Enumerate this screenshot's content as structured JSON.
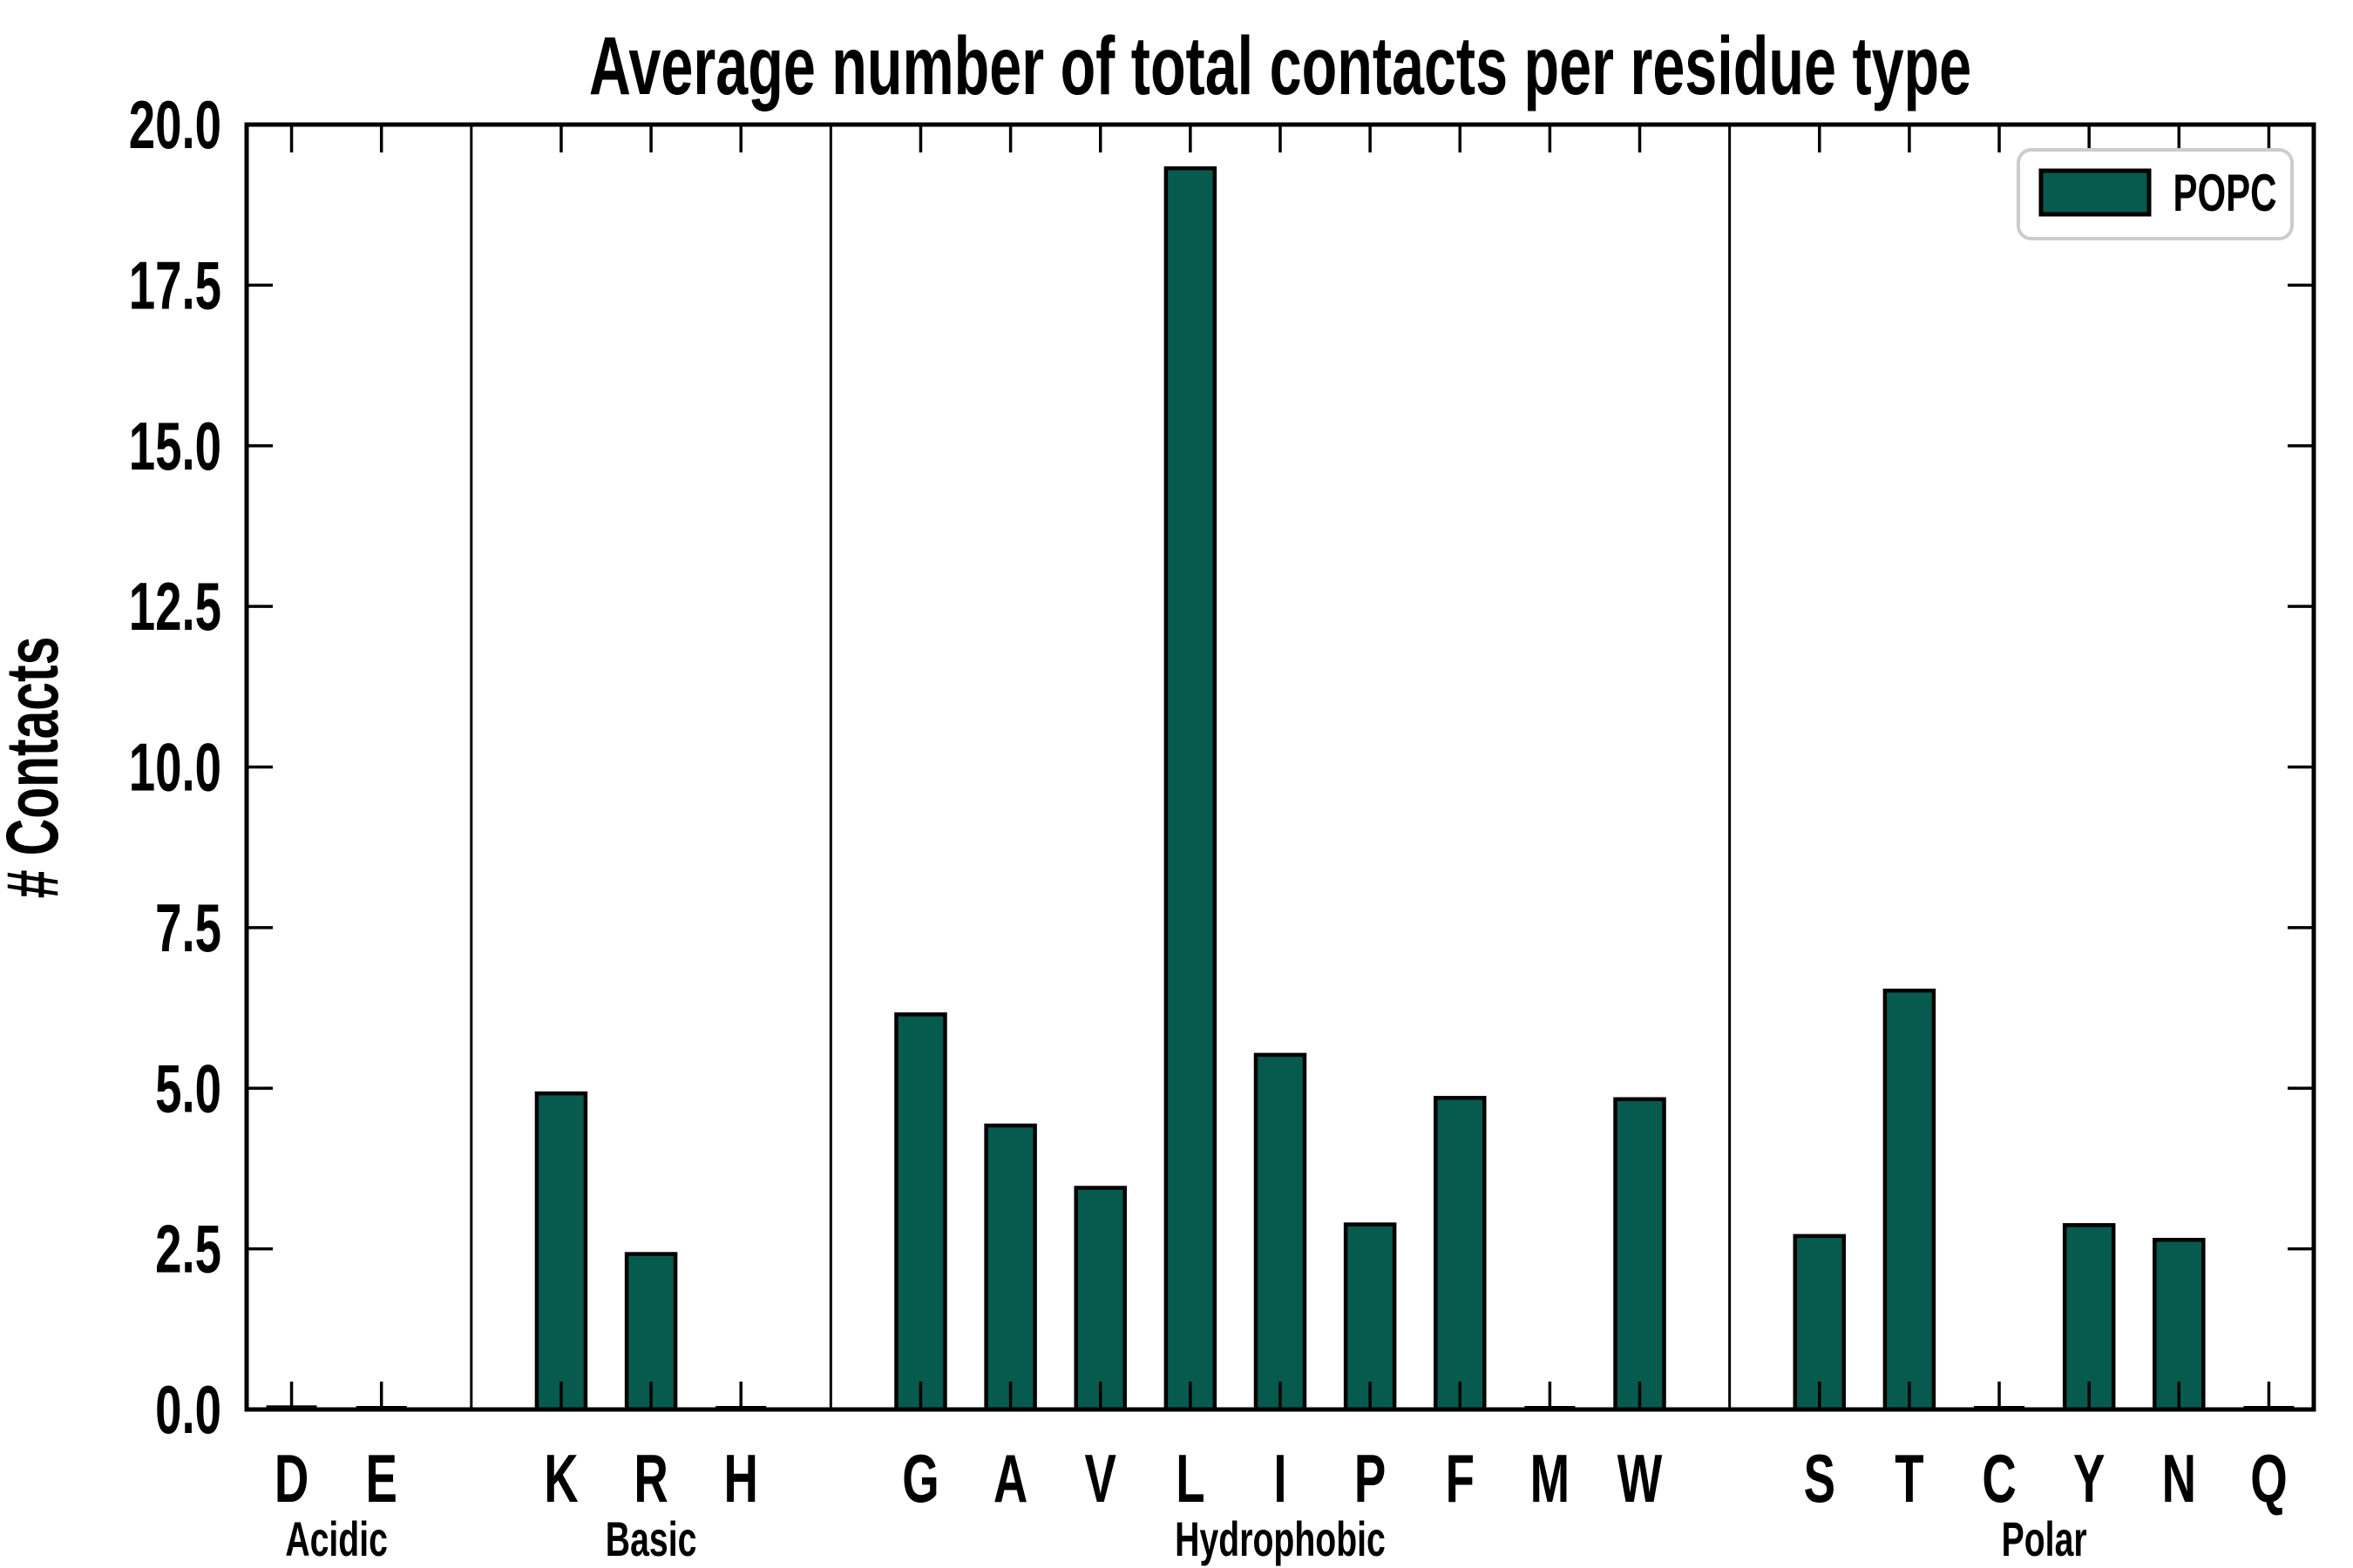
{
  "figure": {
    "background": "#ffffff"
  },
  "chart_data": {
    "type": "bar",
    "title": "Average number of total contacts per residue type",
    "ylabel": "# Contacts",
    "xlabel": "",
    "ylim": [
      0,
      20
    ],
    "ytick_step": 2.5,
    "ytick_labels": [
      "0.0",
      "2.5",
      "5.0",
      "7.5",
      "10.0",
      "12.5",
      "15.0",
      "17.5",
      "20.0"
    ],
    "grid": false,
    "bar_color": "#075a4e",
    "bar_edge_color": "#000000",
    "legend": {
      "position": "upper right",
      "border_color": "#cccccc",
      "entries": [
        {
          "label": "POPC",
          "color": "#075a4e"
        }
      ]
    },
    "groups": [
      {
        "label": "Acidic",
        "categories": [
          "D",
          "E"
        ],
        "values": [
          0.05,
          0.04
        ]
      },
      {
        "label": "Basic",
        "categories": [
          "K",
          "R",
          "H"
        ],
        "values": [
          4.92,
          2.42,
          0.04
        ]
      },
      {
        "label": "Hydrophobic",
        "categories": [
          "G",
          "A",
          "V",
          "L",
          "I",
          "P",
          "F",
          "M",
          "W"
        ],
        "values": [
          6.15,
          4.42,
          3.45,
          19.32,
          5.52,
          2.88,
          4.85,
          0.03,
          4.83
        ]
      },
      {
        "label": "Polar",
        "categories": [
          "S",
          "T",
          "C",
          "Y",
          "N",
          "Q"
        ],
        "values": [
          2.7,
          6.52,
          0.04,
          2.87,
          2.64,
          0.02
        ]
      }
    ]
  }
}
